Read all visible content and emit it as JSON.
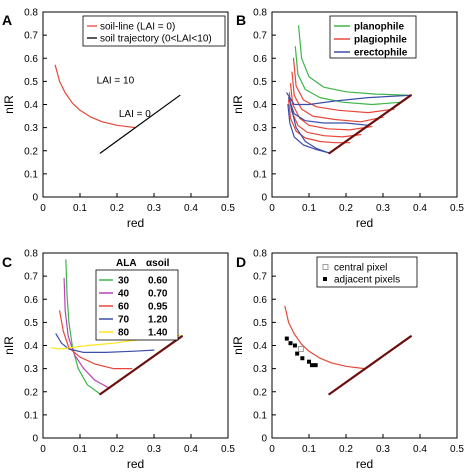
{
  "chart_data": [
    {
      "panel": "A",
      "type": "line",
      "xlabel": "red",
      "ylabel": "nIR",
      "xlim": [
        0,
        0.5
      ],
      "ylim": [
        0,
        0.8
      ],
      "xticks": [
        "0",
        "0.1",
        "0.2",
        "0.3",
        "0.4",
        "0.5"
      ],
      "yticks": [
        "0",
        "0.1",
        "0.2",
        "0.3",
        "0.4",
        "0.5",
        "0.6",
        "0.7",
        "0.8"
      ],
      "legend": {
        "position": "top-right",
        "entries": [
          {
            "label": "soil-line (LAI = 0)",
            "color": "#e8463a"
          },
          {
            "label": "soil trajectory (0<LAI<10)",
            "color": "#000000"
          }
        ]
      },
      "annotations": [
        {
          "text": "LAI = 10",
          "x": 0.145,
          "y": 0.49
        },
        {
          "text": "LAI = 0",
          "x": 0.205,
          "y": 0.345
        }
      ],
      "series": [
        {
          "color": "#e8463a",
          "width": 1.2,
          "x": [
            0.033,
            0.045,
            0.06,
            0.08,
            0.1,
            0.13,
            0.16,
            0.2,
            0.25
          ],
          "y": [
            0.57,
            0.5,
            0.45,
            0.405,
            0.375,
            0.345,
            0.325,
            0.31,
            0.3
          ]
        },
        {
          "color": "#000000",
          "width": 1.2,
          "x": [
            0.155,
            0.37
          ],
          "y": [
            0.19,
            0.44
          ]
        }
      ]
    },
    {
      "panel": "B",
      "type": "line",
      "xlabel": "red",
      "ylabel": "nIR",
      "xlim": [
        0,
        0.5
      ],
      "ylim": [
        0,
        0.8
      ],
      "xticks": [
        "0",
        "0.1",
        "0.2",
        "0.3",
        "0.4",
        "0.5"
      ],
      "yticks": [
        "0",
        "0.1",
        "0.2",
        "0.3",
        "0.4",
        "0.5",
        "0.6",
        "0.7",
        "0.8"
      ],
      "legend": {
        "position": "top-right",
        "entries": [
          {
            "label": "planophile",
            "color": "#3cb54a"
          },
          {
            "label": "plagiophile",
            "color": "#e8463a"
          },
          {
            "label": "erectophile",
            "color": "#3d4ea8"
          }
        ]
      },
      "series": [
        {
          "color": "#3cb54a",
          "width": 1.2,
          "x": [
            0.072,
            0.08,
            0.1,
            0.14,
            0.2,
            0.28,
            0.375
          ],
          "y": [
            0.74,
            0.6,
            0.52,
            0.475,
            0.455,
            0.445,
            0.44
          ]
        },
        {
          "color": "#3cb54a",
          "width": 1.2,
          "x": [
            0.063,
            0.07,
            0.09,
            0.13,
            0.19,
            0.27,
            0.35
          ],
          "y": [
            0.65,
            0.53,
            0.465,
            0.43,
            0.41,
            0.4,
            0.41
          ]
        },
        {
          "color": "#e8463a",
          "width": 1.2,
          "x": [
            0.058,
            0.065,
            0.085,
            0.12,
            0.18,
            0.26,
            0.33
          ],
          "y": [
            0.6,
            0.48,
            0.42,
            0.39,
            0.375,
            0.365,
            0.38
          ]
        },
        {
          "color": "#e8463a",
          "width": 1.2,
          "x": [
            0.054,
            0.06,
            0.08,
            0.11,
            0.17,
            0.24,
            0.3
          ],
          "y": [
            0.54,
            0.44,
            0.38,
            0.35,
            0.335,
            0.325,
            0.345
          ]
        },
        {
          "color": "#e8463a",
          "width": 1.2,
          "x": [
            0.05,
            0.056,
            0.075,
            0.1,
            0.15,
            0.21,
            0.27
          ],
          "y": [
            0.49,
            0.4,
            0.34,
            0.31,
            0.295,
            0.29,
            0.305
          ]
        },
        {
          "color": "#e8463a",
          "width": 1.2,
          "x": [
            0.047,
            0.053,
            0.07,
            0.095,
            0.14,
            0.19,
            0.24
          ],
          "y": [
            0.45,
            0.37,
            0.31,
            0.28,
            0.265,
            0.26,
            0.27
          ]
        },
        {
          "color": "#e8463a",
          "width": 1.2,
          "x": [
            0.045,
            0.05,
            0.065,
            0.09,
            0.13,
            0.17,
            0.21
          ],
          "y": [
            0.42,
            0.34,
            0.285,
            0.255,
            0.24,
            0.235,
            0.235
          ]
        },
        {
          "color": "#3d4ea8",
          "width": 1.2,
          "x": [
            0.043,
            0.048,
            0.06,
            0.085,
            0.12,
            0.155
          ],
          "y": [
            0.4,
            0.32,
            0.26,
            0.225,
            0.205,
            0.19
          ]
        },
        {
          "color": "#3d4ea8",
          "width": 1.2,
          "x": [
            0.04,
            0.06,
            0.1,
            0.17,
            0.26,
            0.375
          ],
          "y": [
            0.45,
            0.4,
            0.4,
            0.415,
            0.43,
            0.44
          ]
        },
        {
          "color": "#3d4ea8",
          "width": 1.2,
          "x": [
            0.045,
            0.06,
            0.09,
            0.14,
            0.2,
            0.26
          ],
          "y": [
            0.43,
            0.36,
            0.33,
            0.32,
            0.32,
            0.31
          ]
        },
        {
          "color": "#3d4ea8",
          "width": 1.2,
          "x": [
            0.05,
            0.065,
            0.09,
            0.12,
            0.155
          ],
          "y": [
            0.4,
            0.3,
            0.24,
            0.21,
            0.19
          ]
        },
        {
          "color": "#6b0f0f",
          "width": 2.2,
          "x": [
            0.155,
            0.375
          ],
          "y": [
            0.19,
            0.44
          ]
        }
      ]
    },
    {
      "panel": "C",
      "type": "line",
      "xlabel": "red",
      "ylabel": "nIR",
      "xlim": [
        0,
        0.5
      ],
      "ylim": [
        0,
        0.8
      ],
      "xticks": [
        "0",
        "0.1",
        "0.2",
        "0.3",
        "0.4",
        "0.5"
      ],
      "yticks": [
        "0",
        "0.1",
        "0.2",
        "0.3",
        "0.4",
        "0.5",
        "0.6",
        "0.7",
        "0.8"
      ],
      "legend": {
        "position": "top-right",
        "headers": [
          "ALA",
          "αsoil"
        ],
        "entries": [
          {
            "ala": "30",
            "asoil": "0.60",
            "color": "#3cb54a"
          },
          {
            "ala": "40",
            "asoil": "0.70",
            "color": "#b843b8"
          },
          {
            "ala": "60",
            "asoil": "0.95",
            "color": "#e8463a"
          },
          {
            "ala": "70",
            "asoil": "1.20",
            "color": "#3d4ea8"
          },
          {
            "ala": "80",
            "asoil": "1.40",
            "color": "#ffe51a"
          }
        ]
      },
      "series": [
        {
          "color": "#3cb54a",
          "width": 1.2,
          "x": [
            0.062,
            0.065,
            0.07,
            0.08,
            0.095,
            0.12,
            0.155
          ],
          "y": [
            0.77,
            0.62,
            0.5,
            0.39,
            0.3,
            0.23,
            0.19
          ]
        },
        {
          "color": "#b843b8",
          "width": 1.2,
          "x": [
            0.057,
            0.06,
            0.068,
            0.085,
            0.11,
            0.14,
            0.18
          ],
          "y": [
            0.69,
            0.55,
            0.44,
            0.36,
            0.3,
            0.25,
            0.215
          ]
        },
        {
          "color": "#e8463a",
          "width": 1.2,
          "x": [
            0.045,
            0.055,
            0.07,
            0.1,
            0.14,
            0.19,
            0.24
          ],
          "y": [
            0.55,
            0.46,
            0.39,
            0.35,
            0.32,
            0.3,
            0.3
          ]
        },
        {
          "color": "#3d4ea8",
          "width": 1.2,
          "x": [
            0.035,
            0.05,
            0.07,
            0.11,
            0.17,
            0.24,
            0.3
          ],
          "y": [
            0.45,
            0.41,
            0.385,
            0.37,
            0.37,
            0.375,
            0.38
          ]
        },
        {
          "color": "#ffe51a",
          "width": 1.2,
          "x": [
            0.022,
            0.05,
            0.07,
            0.12,
            0.19,
            0.28,
            0.37
          ],
          "y": [
            0.39,
            0.385,
            0.39,
            0.4,
            0.41,
            0.43,
            0.445
          ]
        },
        {
          "color": "#6b0f0f",
          "width": 2.2,
          "x": [
            0.155,
            0.375
          ],
          "y": [
            0.19,
            0.44
          ]
        }
      ]
    },
    {
      "panel": "D",
      "type": "scatter",
      "xlabel": "red",
      "ylabel": "nIR",
      "xlim": [
        0,
        0.5
      ],
      "ylim": [
        0,
        0.8
      ],
      "xticks": [
        "0",
        "0.1",
        "0.2",
        "0.3",
        "0.4",
        "0.5"
      ],
      "yticks": [
        "0",
        "0.1",
        "0.2",
        "0.3",
        "0.4",
        "0.5",
        "0.6",
        "0.7",
        "0.8"
      ],
      "legend": {
        "position": "top-right",
        "entries": [
          {
            "label": "central pixel",
            "marker": "open-square"
          },
          {
            "label": "adjacent pixels",
            "marker": "filled-square"
          }
        ]
      },
      "series": [
        {
          "color": "#e8463a",
          "width": 1.2,
          "x": [
            0.035,
            0.045,
            0.06,
            0.08,
            0.1,
            0.13,
            0.16,
            0.2,
            0.25
          ],
          "y": [
            0.57,
            0.5,
            0.45,
            0.405,
            0.375,
            0.345,
            0.325,
            0.31,
            0.3
          ]
        },
        {
          "color": "#6b0f0f",
          "width": 2.2,
          "x": [
            0.155,
            0.375
          ],
          "y": [
            0.19,
            0.44
          ]
        }
      ],
      "central_pixel": {
        "x": 0.078,
        "y": 0.385
      },
      "adjacent_pixels": {
        "x": [
          0.04,
          0.05,
          0.062,
          0.068,
          0.082,
          0.1,
          0.108,
          0.118
        ],
        "y": [
          0.43,
          0.41,
          0.4,
          0.365,
          0.345,
          0.33,
          0.315,
          0.315
        ]
      }
    }
  ]
}
